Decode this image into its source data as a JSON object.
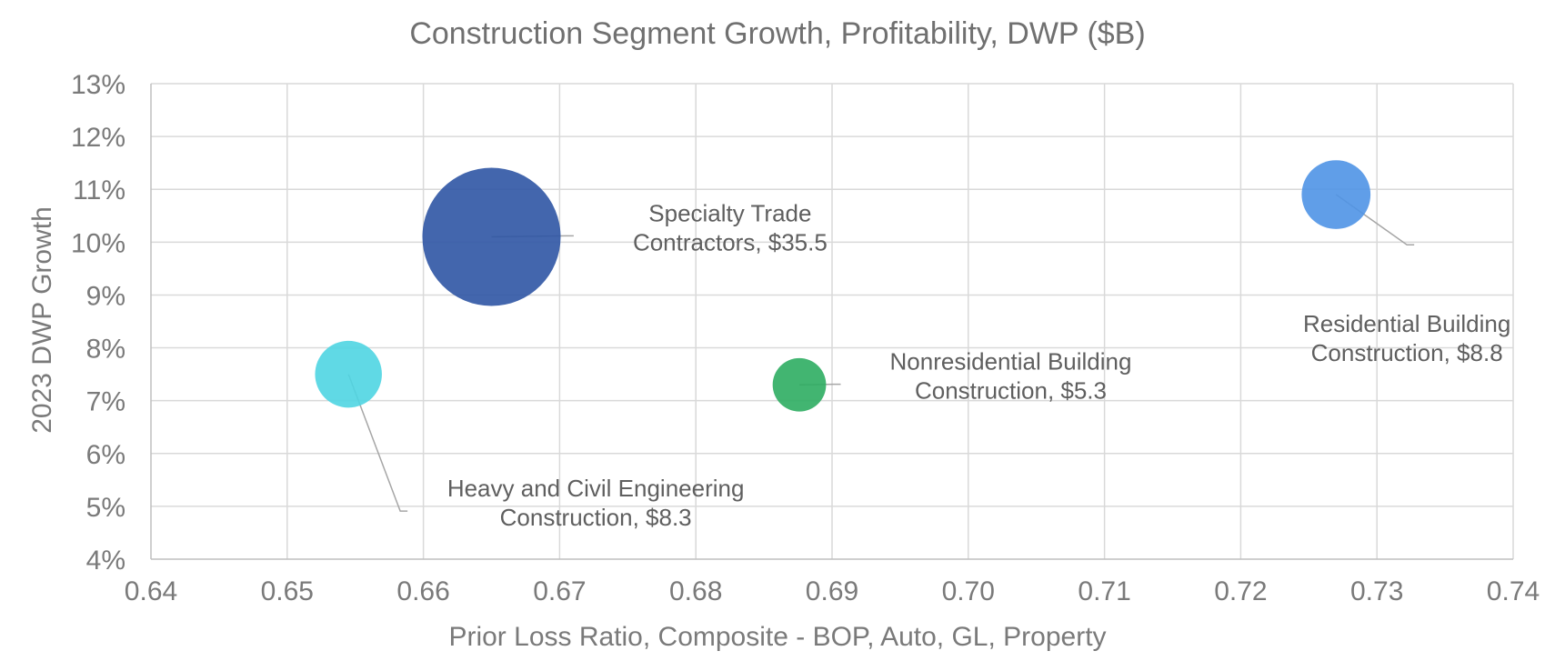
{
  "chart_data": {
    "type": "scatter",
    "subtype": "bubble",
    "title": "Construction Segment Growth, Profitability, DWP ($B)",
    "xlabel": "Prior Loss Ratio, Composite - BOP, Auto, GL, Property",
    "ylabel": "2023 DWP Growth",
    "xlim": [
      0.64,
      0.74
    ],
    "ylim": [
      0.04,
      0.13
    ],
    "x_ticks": [
      "0.64",
      "0.65",
      "0.66",
      "0.67",
      "0.68",
      "0.69",
      "0.70",
      "0.71",
      "0.72",
      "0.73",
      "0.74"
    ],
    "y_ticks": [
      "4%",
      "5%",
      "6%",
      "7%",
      "8%",
      "9%",
      "10%",
      "11%",
      "12%",
      "13%"
    ],
    "grid": true,
    "legend": "none",
    "series": [
      {
        "name": "Specialty Trade Contractors",
        "label_lines": [
          "Specialty Trade",
          "Contractors, $35.5"
        ],
        "x": 0.665,
        "y": 0.101,
        "size": 35.5,
        "color": "#2f55a4",
        "label_x": 0.6705,
        "label_y": 0.1012
      },
      {
        "name": "Heavy and Civil Engineering Construction",
        "label_lines": [
          "Heavy and Civil Engineering",
          "Construction, $8.3"
        ],
        "x": 0.6545,
        "y": 0.075,
        "size": 8.3,
        "color": "#4fd5e2",
        "label_x": 0.6583,
        "label_y": 0.0491
      },
      {
        "name": "Nonresidential Building Construction",
        "label_lines": [
          "Nonresidential Building",
          "Construction, $5.3"
        ],
        "x": 0.6876,
        "y": 0.073,
        "size": 5.3,
        "color": "#2ead62",
        "label_x": 0.6901,
        "label_y": 0.0731
      },
      {
        "name": "Residential Building Construction",
        "label_lines": [
          "Residential Building",
          "Construction, $8.8"
        ],
        "x": 0.727,
        "y": 0.109,
        "size": 8.8,
        "color": "#4f93e6",
        "label_x": 0.7322,
        "label_y": 0.0995
      }
    ]
  }
}
